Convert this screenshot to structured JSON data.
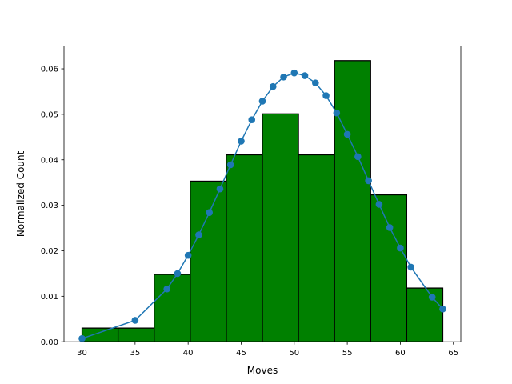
{
  "chart_data": {
    "type": "bar",
    "title": "",
    "xlabel": "Moves",
    "ylabel": "Normalized Count",
    "xlim": [
      28.3,
      65.7
    ],
    "ylim": [
      0,
      0.065
    ],
    "grid": false,
    "x_ticks": [
      30,
      35,
      40,
      45,
      50,
      55,
      60,
      65
    ],
    "x_tick_labels": [
      "30",
      "35",
      "40",
      "45",
      "50",
      "55",
      "60",
      "65"
    ],
    "y_ticks": [
      0,
      0.01,
      0.02,
      0.03,
      0.04,
      0.05,
      0.06
    ],
    "y_tick_labels": [
      "0.00",
      "0.01",
      "0.02",
      "0.03",
      "0.04",
      "0.05",
      "0.06"
    ],
    "histogram": {
      "bin_edges": [
        30.0,
        33.4,
        36.8,
        40.2,
        43.6,
        47.0,
        50.4,
        53.8,
        57.2,
        60.6,
        64.0
      ],
      "values": [
        0.003,
        0.003,
        0.0148,
        0.0353,
        0.0411,
        0.0501,
        0.0411,
        0.0618,
        0.0323,
        0.0118
      ],
      "color": "#008000",
      "edge_color": "#000000"
    },
    "line": {
      "color": "#1f77b4",
      "x": [
        30,
        35,
        38,
        39,
        40,
        41,
        42,
        43,
        44,
        45,
        46,
        47,
        48,
        49,
        50,
        51,
        52,
        53,
        54,
        55,
        56,
        57,
        58,
        59,
        60,
        61,
        63,
        64
      ],
      "y": [
        0.0007,
        0.0047,
        0.0116,
        0.015,
        0.019,
        0.0235,
        0.0284,
        0.0336,
        0.0389,
        0.0441,
        0.0488,
        0.0529,
        0.0561,
        0.0582,
        0.0591,
        0.0585,
        0.0569,
        0.0541,
        0.0503,
        0.0456,
        0.0407,
        0.0354,
        0.0302,
        0.0251,
        0.0206,
        0.0164,
        0.0098,
        0.0072
      ]
    }
  }
}
